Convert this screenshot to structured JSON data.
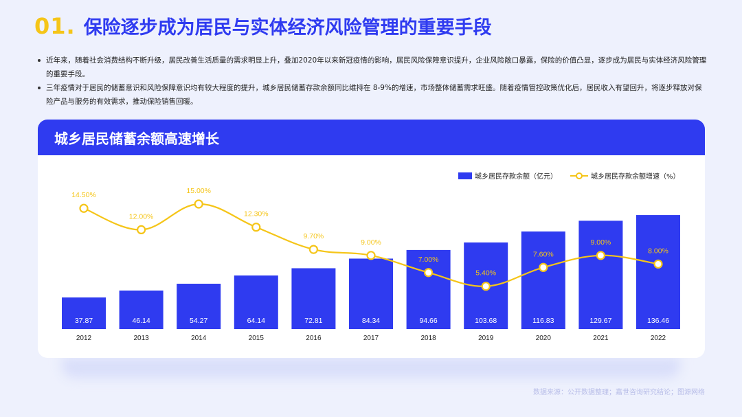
{
  "header": {
    "num": "01.",
    "title": "保险逐步成为居民与实体经济风险管理的重要手段"
  },
  "bullets": [
    "近年来，随着社会消费结构不断升级，居民改善生活质量的需求明显上升，叠加2020年以来新冠疫情的影响，居民风险保障意识提升，企业风险敞口暴露，保险的价值凸显，逐步成为居民与实体经济风险管理的重要手段。",
    "三年疫情对于居民的储蓄意识和风险保障意识均有较大程度的提升，城乡居民储蓄存款余额同比维持在 8-9%的增速，市场整体储蓄需求旺盛。随着疫情管控政策优化后，居民收入有望回升，将逐步释放对保险产品与服务的有效需求，推动保险销售回暖。"
  ],
  "card": {
    "title": "城乡居民储蓄余额高速增长"
  },
  "source": "数据来源：公开数据整理；嘉世咨询研究结论；图源网络",
  "colors": {
    "bar": "#2f3bf0",
    "line": "#f5c518",
    "title": "#2f3bf0",
    "accent": "#f5c518"
  },
  "chart_data": {
    "type": "bar+line",
    "categories": [
      "2012",
      "2013",
      "2014",
      "2015",
      "2016",
      "2017",
      "2018",
      "2019",
      "2020",
      "2021",
      "2022"
    ],
    "series": [
      {
        "name": "城乡居民存款余额（亿元）",
        "type": "bar",
        "values": [
          37.87,
          46.14,
          54.27,
          64.14,
          72.81,
          84.34,
          94.66,
          103.68,
          116.83,
          129.67,
          136.46
        ],
        "labels": [
          "37.87",
          "46.14",
          "54.27",
          "64.14",
          "72.81",
          "84.34",
          "94.66",
          "103.68",
          "116.83",
          "129.67",
          "136.46"
        ]
      },
      {
        "name": "城乡居民存款余额增速（%）",
        "type": "line",
        "values": [
          14.5,
          12.0,
          15.0,
          12.3,
          9.7,
          9.0,
          7.0,
          5.4,
          7.6,
          9.0,
          8.0
        ],
        "labels": [
          "14.50%",
          "12.00%",
          "15.00%",
          "12.30%",
          "9.70%",
          "9.00%",
          "7.00%",
          "5.40%",
          "7.60%",
          "9.00%",
          "8.00%"
        ]
      }
    ],
    "legend_position": "top-right",
    "grid": false
  }
}
